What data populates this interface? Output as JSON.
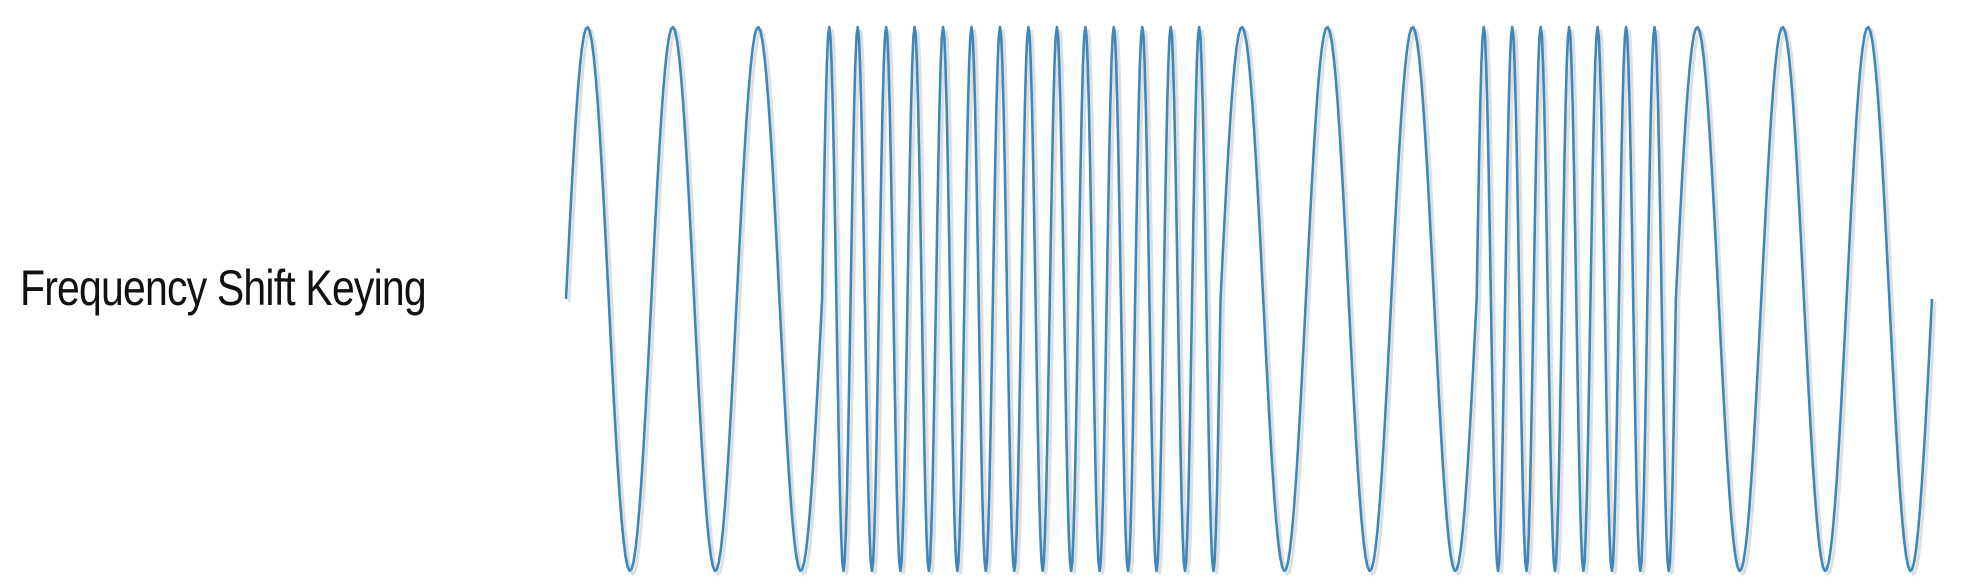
{
  "title": "Frequency Shift Keying",
  "colors": {
    "wave": "#3f87b8",
    "wave_shadow": "#9aa7ad",
    "text": "#111111",
    "background": "#ffffff"
  },
  "waveform": {
    "type": "fsk-sine",
    "segments": [
      {
        "frequency": "low",
        "cycles": 3
      },
      {
        "frequency": "high",
        "cycles": 14
      },
      {
        "frequency": "low",
        "cycles": 3
      },
      {
        "frequency": "high",
        "cycles": 7
      },
      {
        "frequency": "low",
        "cycles": 3
      }
    ]
  }
}
